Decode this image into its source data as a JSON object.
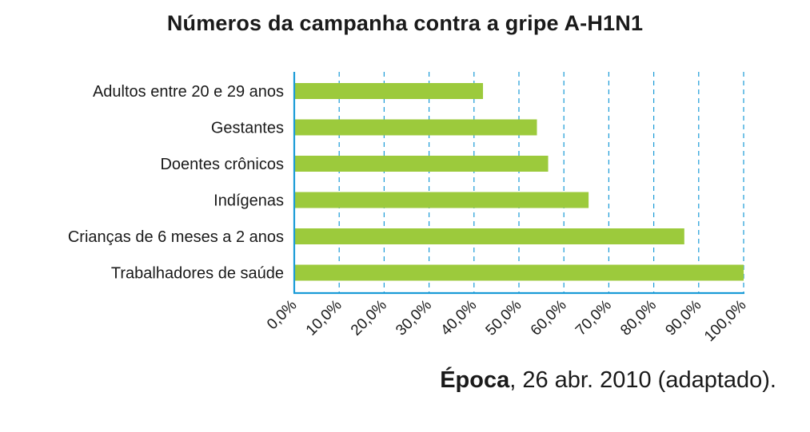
{
  "chart_data": {
    "type": "bar",
    "orientation": "horizontal",
    "title": "Números da campanha contra a gripe A-H1N1",
    "categories": [
      "Adultos entre 20 e 29 anos",
      "Gestantes",
      "Doentes crônicos",
      "Indígenas",
      "Crianças de 6 meses a 2 anos",
      "Trabalhadores de saúde"
    ],
    "values": [
      42,
      54,
      56.5,
      65.5,
      86.8,
      100
    ],
    "xlim": [
      0,
      100
    ],
    "xticks": [
      0,
      10,
      20,
      30,
      40,
      50,
      60,
      70,
      80,
      90,
      100
    ],
    "xtick_labels": [
      "0,0%",
      "10,0%",
      "20,0%",
      "30,0%",
      "40,0%",
      "50,0%",
      "60,0%",
      "70,0%",
      "80,0%",
      "90,0%",
      "100,0%"
    ],
    "grid": "vertical dashed",
    "bar_color": "#9cca3c",
    "axis_color": "#1a9bd7"
  },
  "source": {
    "name": "Época",
    "rest": ", 26 abr. 2010 (adaptado)."
  }
}
